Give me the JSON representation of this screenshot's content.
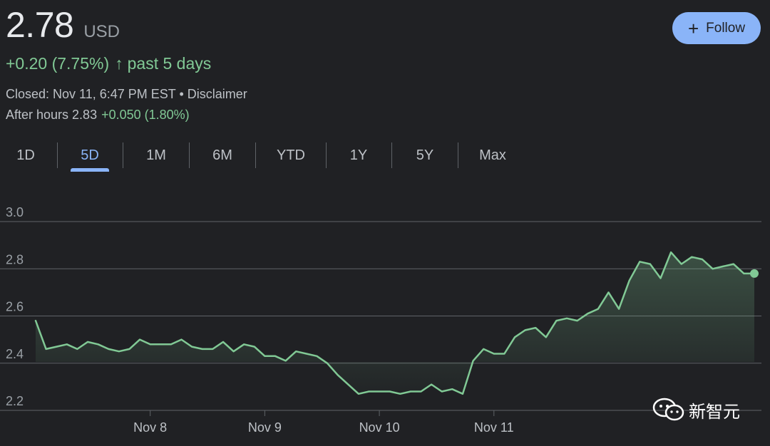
{
  "quote": {
    "price": "2.78",
    "currency": "USD",
    "change": "+0.20 (7.75%)",
    "change_arrow": "↑",
    "change_period": "past 5 days",
    "closed_text": "Closed: Nov 11, 6:47 PM EST • Disclaimer",
    "after_hours_label": "After hours 2.83",
    "after_hours_change": "+0.050 (1.80%)"
  },
  "follow_button": {
    "icon": "plus-icon",
    "label": "Follow"
  },
  "range_tabs": [
    {
      "label": "1D",
      "active": false
    },
    {
      "label": "5D",
      "active": true
    },
    {
      "label": "1M",
      "active": false
    },
    {
      "label": "6M",
      "active": false
    },
    {
      "label": "YTD",
      "active": false
    },
    {
      "label": "1Y",
      "active": false
    },
    {
      "label": "5Y",
      "active": false
    },
    {
      "label": "Max",
      "active": false
    }
  ],
  "colors": {
    "background": "#202124",
    "positive": "#81c995",
    "accent": "#8ab4f8",
    "gridline": "#5f6368"
  },
  "chart_data": {
    "type": "area",
    "title": "",
    "xlabel": "",
    "ylabel": "",
    "ylim": [
      2.2,
      3.0
    ],
    "yticks": [
      3.0,
      2.8,
      2.6,
      2.4,
      2.2
    ],
    "ytick_labels": [
      "3.0",
      "2.8",
      "2.6",
      "2.4",
      "2.2"
    ],
    "xtick_labels": [
      "Nov 8",
      "Nov 9",
      "Nov 10",
      "Nov 11"
    ],
    "xtick_positions": [
      11,
      22,
      33,
      44
    ],
    "grid": true,
    "series": [
      {
        "values": [
          2.58,
          2.46,
          2.47,
          2.48,
          2.46,
          2.49,
          2.48,
          2.46,
          2.45,
          2.46,
          2.5,
          2.48,
          2.48,
          2.48,
          2.5,
          2.47,
          2.46,
          2.46,
          2.49,
          2.45,
          2.48,
          2.47,
          2.43,
          2.43,
          2.41,
          2.45,
          2.44,
          2.43,
          2.4,
          2.35,
          2.31,
          2.27,
          2.28,
          2.28,
          2.28,
          2.27,
          2.28,
          2.28,
          2.31,
          2.28,
          2.29,
          2.27,
          2.41,
          2.46,
          2.44,
          2.44,
          2.51,
          2.54,
          2.55,
          2.51,
          2.58,
          2.59,
          2.58,
          2.61,
          2.63,
          2.7,
          2.63,
          2.75,
          2.83,
          2.82,
          2.76,
          2.87,
          2.82,
          2.85,
          2.84,
          2.8,
          2.81,
          2.82,
          2.78,
          2.78
        ]
      }
    ]
  },
  "watermark": {
    "icon": "wechat-icon",
    "text": "新智元"
  }
}
